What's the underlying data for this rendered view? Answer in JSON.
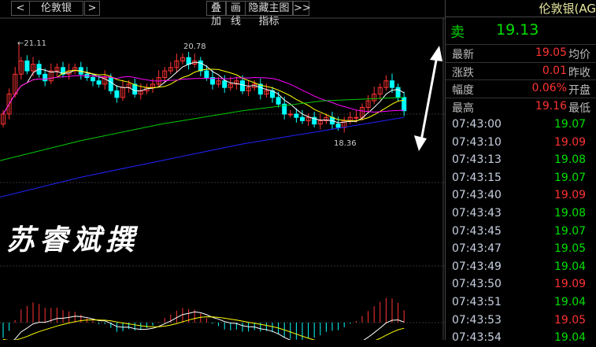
{
  "toolbar": {
    "prev": "<",
    "symbol": "伦敦银",
    "next": ">",
    "overlay": "叠加",
    "draw": "画线",
    "hide_indicator": "隐藏主图指标",
    "more": ">>"
  },
  "quote": {
    "title": "伦敦银(AG",
    "sell_label": "卖",
    "sell_price": "19.13",
    "stats": [
      {
        "k": "最新",
        "v": "19.05",
        "k2": "均价"
      },
      {
        "k": "涨跌",
        "v": "0.01",
        "k2": "昨收"
      },
      {
        "k": "幅度",
        "v": "0.06%",
        "k2": "开盘"
      },
      {
        "k": "最高",
        "v": "19.16",
        "k2": "最低"
      }
    ],
    "ticks": [
      {
        "t": "07:43:00",
        "p": "19.07",
        "c": "#00e000"
      },
      {
        "t": "07:43:10",
        "p": "19.09",
        "c": "#ff3333"
      },
      {
        "t": "07:43:13",
        "p": "19.08",
        "c": "#00e000"
      },
      {
        "t": "07:43:15",
        "p": "19.07",
        "c": "#00e000"
      },
      {
        "t": "07:43:40",
        "p": "19.09",
        "c": "#ff3333"
      },
      {
        "t": "07:43:43",
        "p": "19.08",
        "c": "#00e000"
      },
      {
        "t": "07:43:45",
        "p": "19.07",
        "c": "#00e000"
      },
      {
        "t": "07:43:47",
        "p": "19.05",
        "c": "#00e000"
      },
      {
        "t": "07:43:49",
        "p": "19.04",
        "c": "#00e000"
      },
      {
        "t": "07:43:50",
        "p": "19.09",
        "c": "#ff3333"
      },
      {
        "t": "07:43:51",
        "p": "19.04",
        "c": "#00e000"
      },
      {
        "t": "07:43:53",
        "p": "19.05",
        "c": "#ff3333"
      },
      {
        "t": "07:43:54",
        "p": "19.04",
        "c": "#00e000"
      }
    ]
  },
  "watermark": "苏睿斌撰",
  "chart": {
    "type": "candlestick",
    "high_label": "21.11",
    "mid_high_label": "20.78",
    "low_label": "18.36",
    "closes": [
      19.0,
      19.6,
      20.2,
      20.6,
      20.3,
      20.5,
      20.2,
      20.0,
      20.3,
      20.4,
      20.2,
      20.3,
      20.4,
      20.2,
      20.1,
      20.0,
      19.9,
      20.1,
      19.7,
      19.5,
      19.8,
      19.9,
      19.6,
      19.7,
      19.8,
      19.9,
      20.1,
      20.3,
      20.4,
      20.6,
      20.7,
      20.5,
      20.6,
      20.3,
      20.1,
      19.9,
      20.0,
      19.8,
      19.9,
      20.0,
      19.7,
      19.8,
      19.9,
      19.6,
      19.7,
      19.5,
      19.3,
      19.0,
      19.0,
      18.9,
      18.8,
      18.9,
      18.7,
      18.8,
      18.9,
      18.7,
      18.6,
      18.8,
      18.9,
      18.9,
      19.2,
      19.4,
      19.6,
      19.8,
      20.0,
      19.8,
      19.5,
      19.1
    ],
    "ma_green": [
      17.6,
      18.2,
      18.7,
      19.1,
      19.4,
      19.5
    ],
    "ma_blue": [
      16.5,
      17.1,
      17.6,
      18.1,
      18.5,
      18.9
    ],
    "colors": {
      "up": "#ff3333",
      "down": "#00ffff",
      "ma5": "#ffffff",
      "ma10": "#ffff00",
      "ma20": "#ff00ff",
      "ma_green": "#00cc00",
      "ma_blue": "#2222ff"
    }
  }
}
